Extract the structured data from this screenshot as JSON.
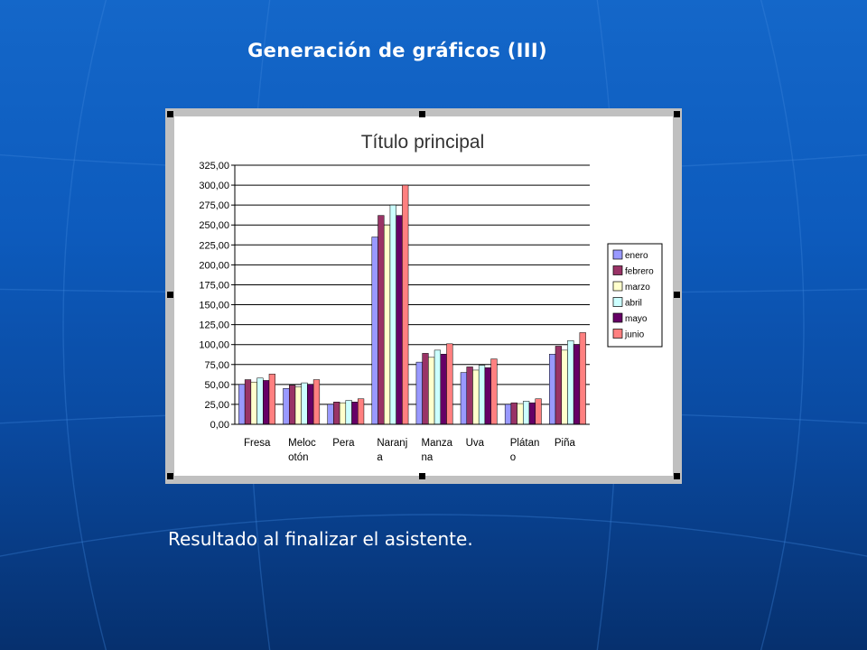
{
  "slide": {
    "title": "Generación de gráficos (III)",
    "caption": "Resultado al finalizar el asistente."
  },
  "colors": {
    "background": "#0d5bbd",
    "chart_frame": "#c0c0c0",
    "plot_area": "#ffffff"
  },
  "chart_data": {
    "type": "bar",
    "title": "Título principal",
    "xlabel": "",
    "ylabel": "",
    "ylim": [
      0,
      325
    ],
    "yticks": [
      0,
      25,
      50,
      75,
      100,
      125,
      150,
      175,
      200,
      225,
      250,
      275,
      300,
      325
    ],
    "ytick_labels": [
      "0,00",
      "25,00",
      "50,00",
      "75,00",
      "100,00",
      "125,00",
      "150,00",
      "175,00",
      "200,00",
      "225,00",
      "250,00",
      "275,00",
      "300,00",
      "325,00"
    ],
    "grid": true,
    "legend": "right",
    "categories": [
      [
        "Fresa"
      ],
      [
        "Meloc",
        "otón"
      ],
      [
        "Pera"
      ],
      [
        "Naranj",
        "a"
      ],
      [
        "Manza",
        "na"
      ],
      [
        "Uva"
      ],
      [
        "Plátan",
        "o"
      ],
      [
        "Piña"
      ]
    ],
    "series": [
      {
        "name": "enero",
        "color": "#9999ff",
        "values": [
          50,
          45,
          25,
          235,
          78,
          65,
          25,
          88
        ]
      },
      {
        "name": "febrero",
        "color": "#993366",
        "values": [
          56,
          49,
          28,
          262,
          89,
          72,
          27,
          98
        ]
      },
      {
        "name": "marzo",
        "color": "#ffffcc",
        "values": [
          53,
          47,
          27,
          250,
          84,
          68,
          26,
          93
        ]
      },
      {
        "name": "abril",
        "color": "#ccffff",
        "values": [
          58,
          52,
          30,
          275,
          93,
          74,
          29,
          105
        ]
      },
      {
        "name": "mayo",
        "color": "#660066",
        "values": [
          55,
          50,
          28,
          262,
          88,
          71,
          27,
          100
        ]
      },
      {
        "name": "junio",
        "color": "#ff8080",
        "values": [
          63,
          56,
          32,
          300,
          101,
          82,
          32,
          115
        ]
      }
    ]
  }
}
